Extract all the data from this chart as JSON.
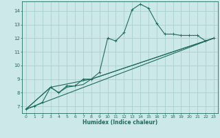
{
  "xlabel": "Humidex (Indice chaleur)",
  "ylabel": "",
  "background_color": "#cce8e8",
  "grid_color": "#aacfcf",
  "line_color": "#1e6b5e",
  "xlim": [
    -0.5,
    23.5
  ],
  "ylim": [
    6.5,
    14.7
  ],
  "xticks": [
    0,
    1,
    2,
    3,
    4,
    5,
    6,
    7,
    8,
    9,
    10,
    11,
    12,
    13,
    14,
    15,
    16,
    17,
    18,
    19,
    20,
    21,
    22,
    23
  ],
  "yticks": [
    7,
    8,
    9,
    10,
    11,
    12,
    13,
    14
  ],
  "line1_x": [
    0,
    1,
    2,
    3,
    4,
    5,
    6,
    7,
    8,
    9,
    10,
    11,
    12,
    13,
    14,
    15,
    16,
    17,
    18,
    19,
    20,
    21,
    22,
    23
  ],
  "line1_y": [
    6.8,
    7.0,
    7.3,
    8.4,
    8.0,
    8.5,
    8.5,
    9.0,
    9.0,
    9.5,
    12.0,
    11.8,
    12.4,
    14.1,
    14.5,
    14.2,
    13.1,
    12.3,
    12.3,
    12.2,
    12.2,
    12.2,
    11.8,
    12.0
  ],
  "line2_x": [
    0,
    3,
    4,
    5,
    6,
    7,
    8,
    23
  ],
  "line2_y": [
    6.8,
    8.4,
    8.0,
    8.4,
    8.5,
    8.6,
    9.0,
    12.0
  ],
  "line3_x": [
    0,
    3,
    8,
    23
  ],
  "line3_y": [
    6.8,
    8.4,
    9.0,
    12.0
  ],
  "line4_x": [
    0,
    23
  ],
  "line4_y": [
    6.8,
    12.0
  ]
}
